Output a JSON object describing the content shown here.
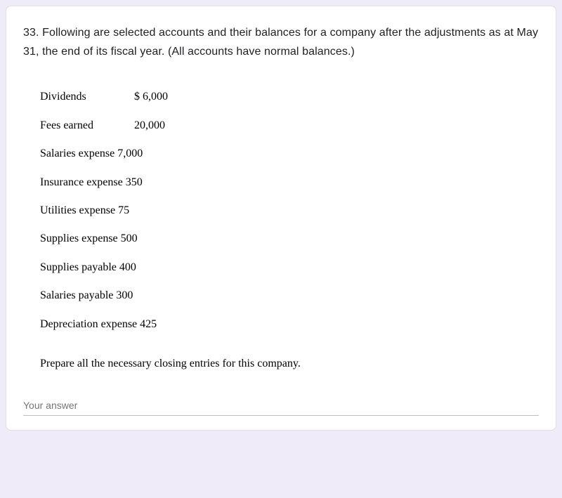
{
  "question": {
    "text": "33. Following are selected accounts and their balances for a company after the adjustments as at May 31, the end of its fiscal year. (All accounts have normal balances.)"
  },
  "accounts": [
    {
      "label": "Dividends",
      "value": "$ 6,000",
      "labelClass": "w-label-0"
    },
    {
      "label": "Fees earned",
      "value": "20,000",
      "labelClass": "w-label-1"
    },
    {
      "label": "Salaries expense",
      "value": "7,000",
      "labelClass": "w-label-2"
    },
    {
      "label": "Insurance expense",
      "value": "350",
      "labelClass": "w-label-2"
    },
    {
      "label": "Utilities expense",
      "value": "75",
      "labelClass": "w-label-2"
    },
    {
      "label": "Supplies expense",
      "value": "500",
      "labelClass": "w-label-2"
    },
    {
      "label": "Supplies payable",
      "value": "400",
      "labelClass": "w-label-2"
    },
    {
      "label": "Salaries payable",
      "value": "300",
      "labelClass": "w-label-2"
    },
    {
      "label": "Depreciation expense",
      "value": "425",
      "labelClass": "w-label-2"
    }
  ],
  "instruction": "Prepare all the necessary closing entries for this company.",
  "answer": {
    "placeholder": "Your answer",
    "value": ""
  },
  "colors": {
    "page_bg": "#f0ebf8",
    "card_bg": "#ffffff",
    "card_border": "#e0e0e0",
    "question_text": "#202124",
    "data_text": "#000000",
    "input_border": "#bdbdbd",
    "placeholder": "#70757a"
  },
  "typography": {
    "question_font": "Arial",
    "question_size_pt": 12,
    "data_font": "Georgia",
    "data_size_pt": 12
  }
}
